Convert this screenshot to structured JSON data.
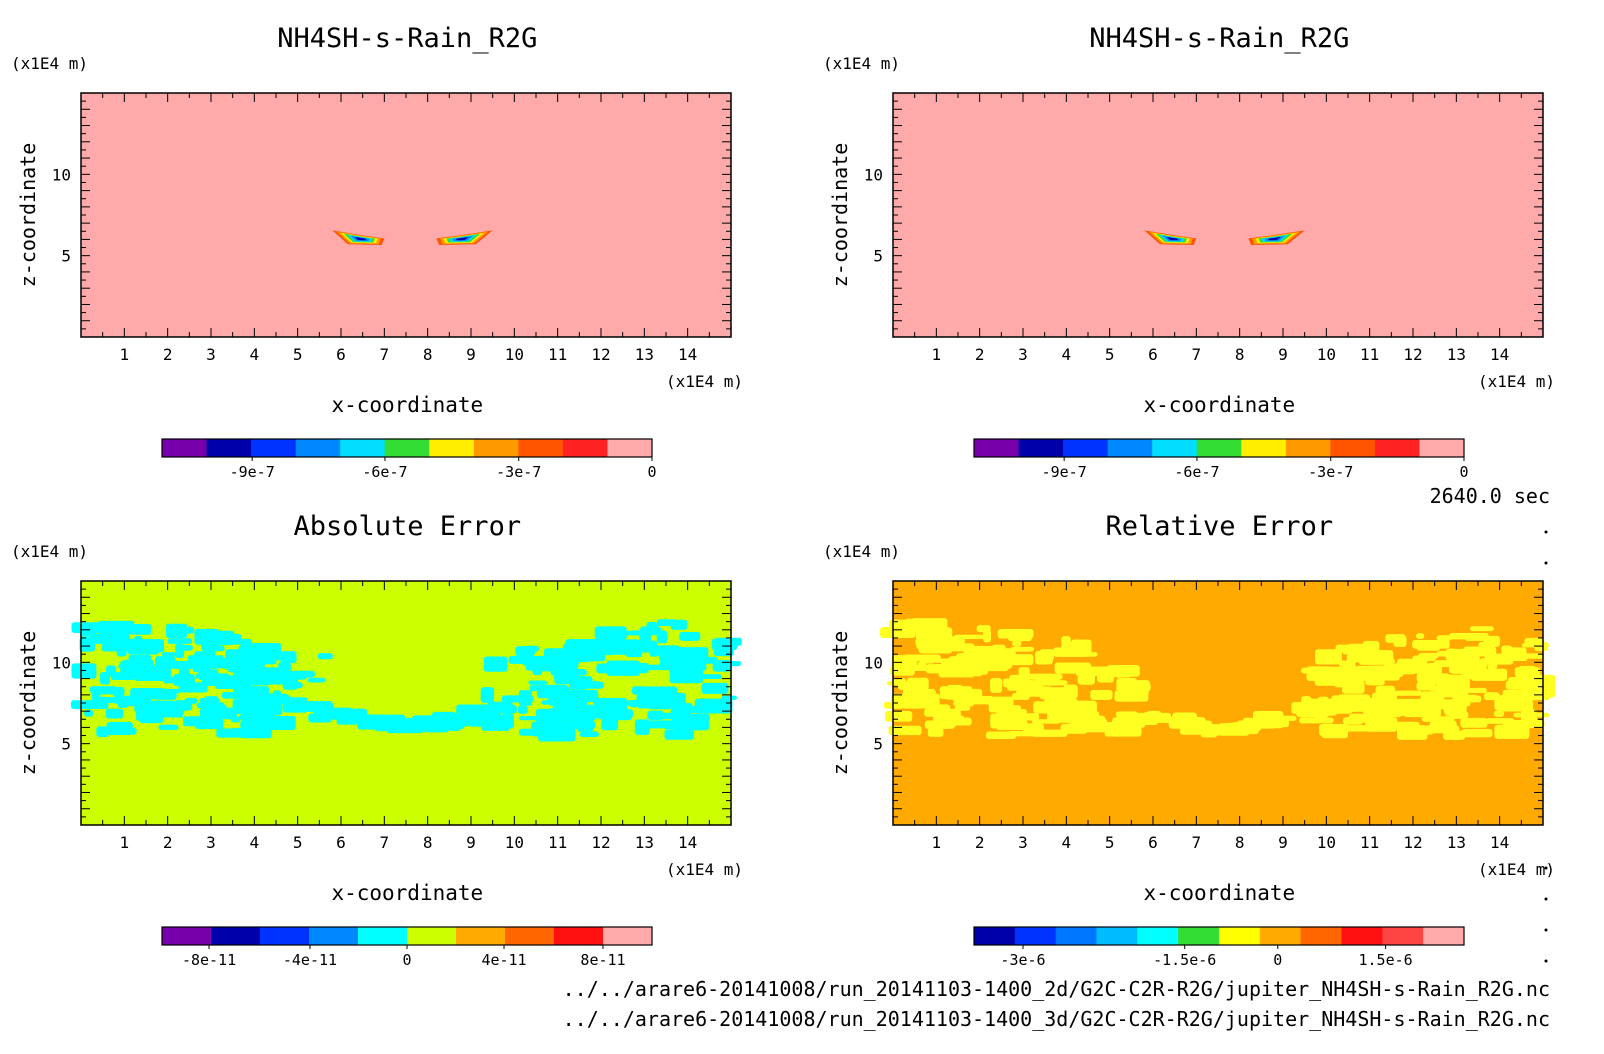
{
  "time_label": "2640.0 sec",
  "files": [
    "../../arare6-20141008/run_20141103-1400_2d/G2C-C2R-R2G/jupiter_NH4SH-s-Rain_R2G.nc",
    "../../arare6-20141008/run_20141103-1400_3d/G2C-C2R-R2G/jupiter_NH4SH-s-Rain_R2G.nc"
  ],
  "chart_data": [
    {
      "type": "heatmap",
      "title": "NH4SH-s-Rain_R2G",
      "xlabel": "x-coordinate",
      "ylabel": "z-coordinate",
      "x_unit": "(x1E4 m)",
      "y_unit": "(x1E4 m)",
      "xlim": [
        0,
        15
      ],
      "ylim": [
        0,
        15
      ],
      "xticks": [
        "1",
        "2",
        "3",
        "4",
        "5",
        "6",
        "7",
        "8",
        "9",
        "10",
        "11",
        "12",
        "13",
        "14"
      ],
      "yticks": [
        "5",
        "10"
      ],
      "background_color": "#ffaaaa",
      "features": [
        {
          "label": "left blob",
          "x_range": [
            5.8,
            7.0
          ],
          "z_range": [
            5.7,
            6.6
          ]
        },
        {
          "label": "right blob",
          "x_range": [
            8.2,
            9.5
          ],
          "z_range": [
            5.7,
            6.6
          ]
        }
      ],
      "colorbar": {
        "colors": [
          "#7700aa",
          "#0000aa",
          "#0033ff",
          "#0088ff",
          "#00ddff",
          "#33dd33",
          "#ffee00",
          "#ff9900",
          "#ff5500",
          "#ff2222",
          "#ffaaaa"
        ],
        "ticks": [
          "-9e-7",
          "-6e-7",
          "-3e-7",
          "0"
        ]
      }
    },
    {
      "type": "heatmap",
      "title": "NH4SH-s-Rain_R2G",
      "xlabel": "x-coordinate",
      "ylabel": "z-coordinate",
      "x_unit": "(x1E4 m)",
      "y_unit": "(x1E4 m)",
      "xlim": [
        0,
        15
      ],
      "ylim": [
        0,
        15
      ],
      "xticks": [
        "1",
        "2",
        "3",
        "4",
        "5",
        "6",
        "7",
        "8",
        "9",
        "10",
        "11",
        "12",
        "13",
        "14"
      ],
      "yticks": [
        "5",
        "10"
      ],
      "background_color": "#ffaaaa",
      "features": [
        {
          "label": "left blob",
          "x_range": [
            5.8,
            7.0
          ],
          "z_range": [
            5.7,
            6.6
          ]
        },
        {
          "label": "right blob",
          "x_range": [
            8.2,
            9.5
          ],
          "z_range": [
            5.7,
            6.6
          ]
        }
      ],
      "colorbar": {
        "colors": [
          "#7700aa",
          "#0000aa",
          "#0033ff",
          "#0088ff",
          "#00ddff",
          "#33dd33",
          "#ffee00",
          "#ff9900",
          "#ff5500",
          "#ff2222",
          "#ffaaaa"
        ],
        "ticks": [
          "-9e-7",
          "-6e-7",
          "-3e-7",
          "0"
        ]
      }
    },
    {
      "type": "heatmap",
      "title": "Absolute Error",
      "xlabel": "x-coordinate",
      "ylabel": "z-coordinate",
      "x_unit": "(x1E4 m)",
      "y_unit": "(x1E4 m)",
      "xlim": [
        0,
        15
      ],
      "ylim": [
        0,
        15
      ],
      "xticks": [
        "1",
        "2",
        "3",
        "4",
        "5",
        "6",
        "7",
        "8",
        "9",
        "10",
        "11",
        "12",
        "13",
        "14"
      ],
      "yticks": [
        "5",
        "10"
      ],
      "background_color": "#ccff00",
      "noise_color": "#00ffff",
      "noise_z_range": [
        5.5,
        12.5
      ],
      "colorbar": {
        "colors": [
          "#7700aa",
          "#0000aa",
          "#0033ff",
          "#0088ff",
          "#00ffff",
          "#ccff00",
          "#ffaa00",
          "#ff6600",
          "#ff1111",
          "#ffaaaa"
        ],
        "ticks": [
          "-8e-11",
          "-4e-11",
          "0",
          "4e-11",
          "8e-11"
        ]
      }
    },
    {
      "type": "heatmap",
      "title": "Relative Error",
      "xlabel": "x-coordinate",
      "ylabel": "z-coordinate",
      "x_unit": "(x1E4 m)",
      "y_unit": "(x1E4 m)",
      "xlim": [
        0,
        15
      ],
      "ylim": [
        0,
        15
      ],
      "xticks": [
        "1",
        "2",
        "3",
        "4",
        "5",
        "6",
        "7",
        "8",
        "9",
        "10",
        "11",
        "12",
        "13",
        "14"
      ],
      "yticks": [
        "5",
        "10"
      ],
      "background_color": "#ffaa00",
      "noise_color": "#ffff22",
      "noise_z_range": [
        5.5,
        12.5
      ],
      "colorbar": {
        "colors": [
          "#0000aa",
          "#0033ff",
          "#0077ff",
          "#00bbff",
          "#00ffff",
          "#33dd33",
          "#ffff00",
          "#ffaa00",
          "#ff6600",
          "#ff1111",
          "#ff4444",
          "#ffaaaa"
        ],
        "ticks": [
          "-3e-6",
          "-1.5e-6",
          "0",
          "1.5e-6"
        ]
      }
    }
  ]
}
